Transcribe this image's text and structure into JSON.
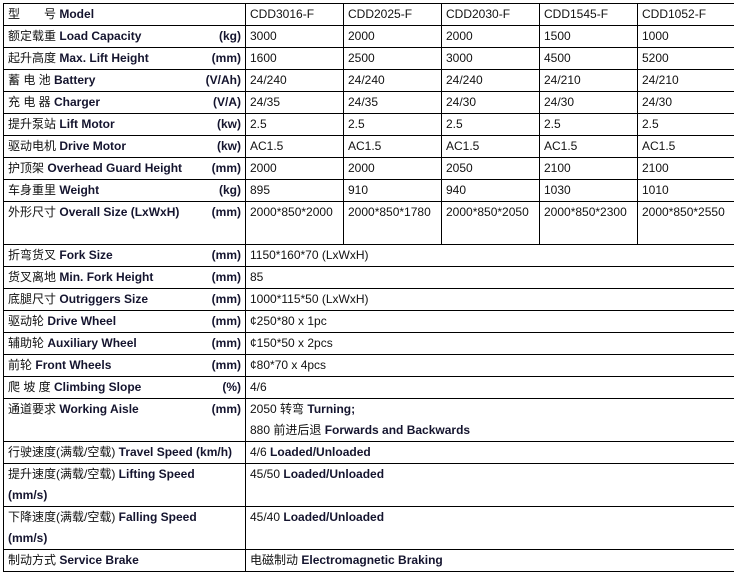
{
  "header": {
    "cn": "型　　号",
    "en": "Model",
    "models": [
      "CDD3016-F",
      "CDD2025-F",
      "CDD2030-F",
      "CDD1545-F",
      "CDD1052-F"
    ]
  },
  "rows": [
    {
      "cn": "额定载重",
      "en": "Load Capacity",
      "unit": "(kg)",
      "values": [
        "3000",
        "2000",
        "2000",
        "1500",
        "1000"
      ]
    },
    {
      "cn": "起升高度",
      "en": "Max. Lift Height",
      "unit": "(mm)",
      "values": [
        "1600",
        "2500",
        "3000",
        "4500",
        "5200"
      ]
    },
    {
      "cn": "蓄 电 池",
      "en": "Battery",
      "unit": "(V/Ah)",
      "values": [
        "24/240",
        "24/240",
        "24/240",
        "24/210",
        "24/210"
      ]
    },
    {
      "cn": "充 电 器",
      "en": "Charger",
      "unit": "(V/A)",
      "values": [
        "24/35",
        "24/35",
        "24/30",
        "24/30",
        "24/30"
      ]
    },
    {
      "cn": "提升泵站",
      "en": "Lift Motor",
      "unit": "(kw)",
      "values": [
        "2.5",
        "2.5",
        "2.5",
        "2.5",
        "2.5"
      ]
    },
    {
      "cn": "驱动电机",
      "en": "Drive Motor",
      "unit": "(kw)",
      "values": [
        "AC1.5",
        "AC1.5",
        "AC1.5",
        "AC1.5",
        "AC1.5"
      ]
    },
    {
      "cn": "护顶架",
      "en": "Overhead Guard Height",
      "unit": "(mm)",
      "values": [
        "2000",
        "2000",
        "2050",
        "2100",
        "2100"
      ]
    },
    {
      "cn": "车身重里",
      "en": "Weight",
      "unit": "(kg)",
      "values": [
        "895",
        "910",
        "940",
        "1030",
        "1010"
      ]
    },
    {
      "cn": "外形尺寸",
      "en": "Overall Size (LxWxH)",
      "unit": "(mm)",
      "values": [
        "2000*850*2000",
        "2000*850*1780",
        "2000*850*2050",
        "2000*850*2300",
        "2000*850*2550"
      ]
    }
  ],
  "common": [
    {
      "cn": "折弯货叉",
      "en": "Fork Size",
      "unit": "(mm)",
      "value": "1150*160*70 (LxWxH)"
    },
    {
      "cn": "货叉离地",
      "en": "Min. Fork Height",
      "unit": "(mm)",
      "value": "85"
    },
    {
      "cn": "底腿尺寸",
      "en": "Outriggers Size",
      "unit": "(mm)",
      "value": "1000*115*50 (LxWxH)"
    },
    {
      "cn": "驱动轮",
      "en": "Drive Wheel",
      "unit": "(mm)",
      "value": "¢250*80 x 1pc"
    },
    {
      "cn": "辅助轮",
      "en": "Auxiliary Wheel",
      "unit": "(mm)",
      "value": "¢150*50 x 2pcs"
    },
    {
      "cn": "前轮",
      "en": "Front Wheels",
      "unit": "(mm)",
      "value": "¢80*70 x 4pcs"
    },
    {
      "cn": "爬 坡 度",
      "en": "Climbing Slope",
      "unit": "(%)",
      "value": "4/6"
    }
  ],
  "aisle": {
    "cn": "通道要求",
    "en": "Working Aisle",
    "unit": "(mm)",
    "line1_cn": "2050 转弯",
    "line1_en": "Turning;",
    "line2_cn": "880 前进后退",
    "line2_en": "Forwards and Backwards"
  },
  "travel": {
    "cn": "行驶速度(满载/空载)",
    "en": "Travel Speed (km/h)",
    "value_num": "4/6",
    "value_en": "Loaded/Unloaded"
  },
  "lifting": {
    "cn": "提升速度(满载/空载)",
    "en": "Lifting Speed",
    "unit": "(mm/s)",
    "value_num": "45/50",
    "value_en": "Loaded/Unloaded"
  },
  "falling": {
    "cn": "下降速度(满载/空载)",
    "en": "Falling Speed",
    "unit": "(mm/s)",
    "value_num": "45/40",
    "value_en": "Loaded/Unloaded"
  },
  "brake": {
    "cn": "制动方式",
    "en": "Service Brake",
    "value_cn": "电磁制动",
    "value_en": "Electromagnetic Braking"
  }
}
